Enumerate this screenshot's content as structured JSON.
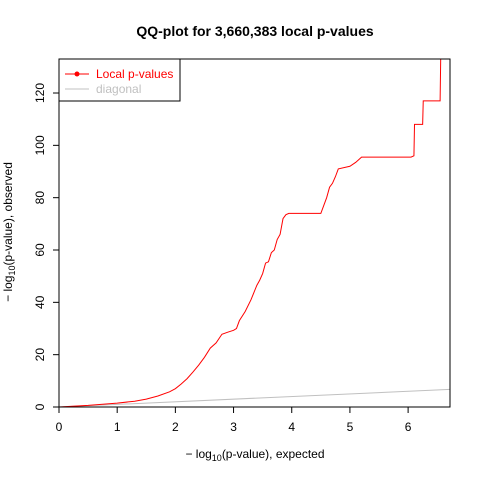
{
  "chart_data": {
    "type": "line",
    "title": "QQ-plot for 3,660,383 local p-values",
    "xlabel": {
      "prefix": "− log",
      "sub": "10",
      "suffix": "(p-value), expected"
    },
    "ylabel": {
      "prefix": "− log",
      "sub": "10",
      "suffix": "(p-value), observed"
    },
    "xlim": [
      0,
      6.72
    ],
    "ylim": [
      0,
      133
    ],
    "xticks": [
      0,
      1,
      2,
      3,
      4,
      5,
      6
    ],
    "yticks": [
      0,
      20,
      40,
      60,
      80,
      100,
      120
    ],
    "legend_position": "top-left",
    "grid": false,
    "series": [
      {
        "name": "Local p-values",
        "color": "#ff0000",
        "x": [
          0,
          0.5,
          1.0,
          1.3,
          1.5,
          1.7,
          1.9,
          2.0,
          2.1,
          2.2,
          2.3,
          2.4,
          2.5,
          2.6,
          2.7,
          2.8,
          2.9,
          3.0,
          3.05,
          3.1,
          3.2,
          3.3,
          3.4,
          3.45,
          3.5,
          3.55,
          3.6,
          3.65,
          3.7,
          3.75,
          3.8,
          3.85,
          3.9,
          3.95,
          4.0,
          4.5,
          4.55,
          4.6,
          4.65,
          4.7,
          4.75,
          4.8,
          5.0,
          5.1,
          5.2,
          6.05,
          6.1,
          6.11,
          6.25,
          6.26,
          6.55,
          6.56,
          6.61
        ],
        "y": [
          0,
          0.6,
          1.5,
          2.2,
          3.0,
          4.2,
          5.8,
          7.0,
          8.8,
          10.8,
          13.3,
          16.0,
          19.0,
          22.5,
          24.5,
          27.8,
          28.6,
          29.3,
          30.0,
          33.0,
          36.5,
          41.0,
          46.5,
          48.5,
          51.0,
          55.0,
          55.5,
          59.0,
          60.0,
          64.0,
          66.0,
          72.0,
          73.5,
          74.0,
          74.0,
          74.0,
          77.0,
          80.0,
          84.0,
          85.5,
          88.0,
          91.0,
          92.0,
          93.5,
          95.5,
          95.5,
          96.0,
          108.0,
          108.0,
          117.0,
          117.0,
          133.0,
          133.0
        ]
      },
      {
        "name": "diagonal",
        "color": "#c0c0c0",
        "x": [
          0,
          6.72
        ],
        "y": [
          0,
          6.72
        ]
      }
    ]
  }
}
